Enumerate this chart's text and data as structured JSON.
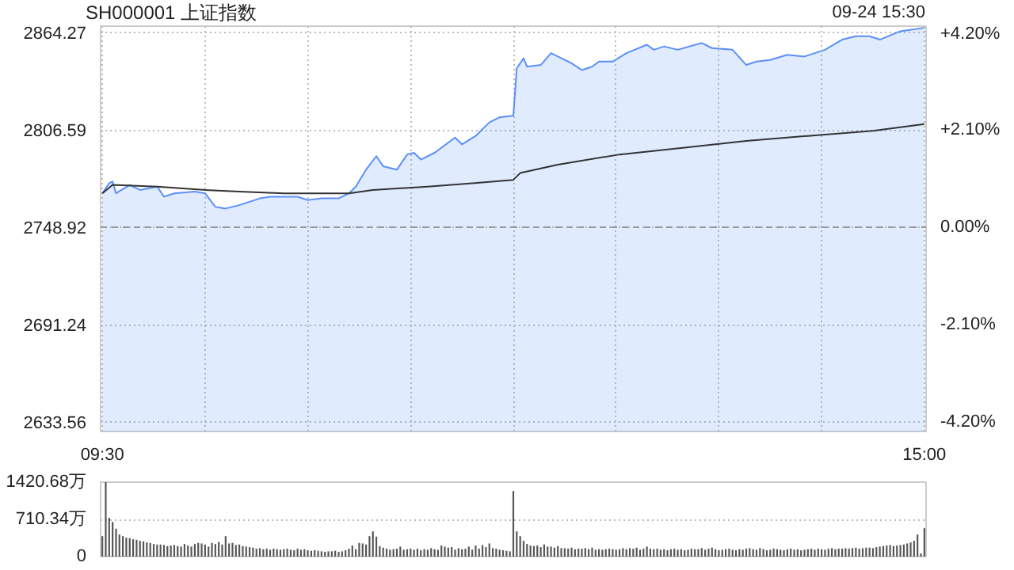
{
  "chart_data": [
    {
      "type": "area",
      "title": "SH000001 上证指数",
      "annotations": [
        "09-24 15:30"
      ],
      "categories": [
        "09:30",
        null,
        null,
        null,
        null,
        null,
        null,
        null,
        null,
        null,
        null,
        null,
        null,
        null,
        null,
        null,
        null,
        null,
        null,
        null,
        null,
        null,
        null,
        null,
        null,
        null,
        null,
        null,
        null,
        null,
        null,
        null,
        null,
        null,
        null,
        null,
        null,
        null,
        null,
        null,
        null,
        null,
        null,
        null,
        null,
        null,
        null,
        null,
        null,
        null,
        null,
        null,
        null,
        null,
        null,
        null,
        null,
        null,
        null,
        null,
        null,
        null,
        null,
        null,
        null,
        null,
        null,
        null,
        null,
        null,
        null,
        null,
        null,
        null,
        null,
        null,
        null,
        null,
        null,
        null,
        null,
        null,
        null,
        null,
        null,
        null,
        null,
        null,
        null,
        null,
        null,
        null,
        null,
        null,
        null,
        null,
        null,
        null,
        null,
        null,
        null,
        null,
        null,
        null,
        null,
        null,
        null,
        null,
        null,
        null,
        null,
        null,
        null,
        null,
        null,
        null,
        null,
        null,
        null,
        null,
        null,
        null,
        null,
        null,
        null,
        null,
        null,
        null,
        null,
        null,
        null,
        null,
        null,
        null,
        null,
        null,
        null,
        null,
        null,
        null,
        null,
        null,
        null,
        null,
        null,
        null,
        null,
        null,
        null,
        null,
        null,
        null,
        null,
        null,
        null,
        null,
        null,
        null,
        null,
        null,
        null,
        null,
        null,
        null,
        null,
        null,
        null,
        null,
        null,
        null,
        null,
        null,
        null,
        null,
        null,
        null,
        null,
        null,
        null,
        null,
        null,
        null,
        null,
        null,
        null,
        null,
        null,
        null,
        null,
        null,
        null,
        null,
        null,
        null,
        null,
        null,
        null,
        null,
        null,
        null,
        null,
        null,
        null,
        null,
        null,
        null,
        null,
        null,
        null,
        null,
        null,
        null,
        null,
        null,
        null,
        null,
        null,
        null,
        null,
        null,
        null,
        null,
        null,
        null,
        null,
        null,
        null,
        null,
        null,
        null,
        null,
        null,
        null,
        null,
        null,
        null,
        null,
        null,
        null,
        null,
        "15:00"
      ],
      "ylim": [
        2628,
        2868
      ],
      "yticks": [
        2633.56,
        2691.24,
        2748.92,
        2806.59,
        2864.27
      ],
      "y2lim": [
        -4.4,
        4.33
      ],
      "y2ticks": [
        {
          "value": -4.2,
          "label": "-4.20%"
        },
        {
          "value": -2.1,
          "label": "-2.10%"
        },
        {
          "value": 0,
          "label": "0.00%"
        },
        {
          "value": 2.1,
          "label": "+2.10%"
        },
        {
          "value": 4.2,
          "label": "+4.20%"
        }
      ],
      "grid": true,
      "ref_lines": [
        {
          "axis": "y",
          "value": 2748.92,
          "color": "#999999",
          "line_style": "dashed"
        }
      ],
      "series": [
        {
          "type": "area",
          "color": "#5b8ff9",
          "values": [
            2769,
            null,
            2775,
            2776,
            2769,
            null,
            null,
            null,
            2774,
            null,
            null,
            2771,
            null,
            null,
            null,
            null,
            2773,
            null,
            2767,
            null,
            null,
            2769,
            null,
            null,
            null,
            null,
            null,
            2770,
            null,
            null,
            2769,
            null,
            null,
            2761,
            null,
            null,
            2760,
            null,
            null,
            null,
            2762,
            null,
            null,
            2764,
            null,
            null,
            2766,
            null,
            null,
            2767,
            null,
            null,
            null,
            null,
            null,
            null,
            null,
            2767,
            null,
            null,
            2765,
            null,
            null,
            null,
            2766,
            null,
            null,
            null,
            null,
            2766,
            null,
            null,
            2769,
            null,
            2773,
            null,
            null,
            2783,
            null,
            null,
            2791,
            null,
            2785,
            null,
            2784,
            null,
            2783,
            null,
            null,
            2792,
            null,
            2793,
            null,
            2789,
            null,
            null,
            null,
            2793,
            null,
            null,
            null,
            null,
            null,
            2802,
            null,
            2798,
            null,
            null,
            null,
            2803,
            null,
            null,
            null,
            2811,
            null,
            null,
            2814,
            null,
            null,
            null,
            2815,
            2843,
            null,
            2849,
            2844,
            null,
            null,
            null,
            2845,
            null,
            null,
            2852,
            null,
            2850,
            null,
            null,
            null,
            2846,
            null,
            null,
            2842,
            null,
            null,
            2844,
            null,
            2847,
            null,
            null,
            null,
            2847,
            null,
            null,
            null,
            2852,
            null,
            null,
            null,
            null,
            null,
            2857,
            null,
            2854,
            null,
            null,
            2856,
            null,
            null,
            null,
            2854,
            null,
            null,
            null,
            null,
            null,
            null,
            2858,
            null,
            null,
            2855,
            null,
            null,
            null,
            null,
            null,
            2854,
            null,
            null,
            null,
            2845,
            null,
            null,
            2847,
            null,
            null,
            null,
            2848,
            null,
            null,
            null,
            null,
            2851,
            null,
            null,
            null,
            null,
            2850,
            null,
            null,
            null,
            null,
            null,
            2854,
            null,
            null,
            null,
            null,
            2860,
            null,
            null,
            null,
            2862,
            null,
            null,
            null,
            2862,
            null,
            null,
            2860,
            null,
            null,
            null,
            null,
            null,
            2865,
            null,
            null,
            null,
            null,
            null,
            null,
            2867
          ]
        },
        {
          "type": "line",
          "color": "#333333",
          "values": [
            2769,
            null,
            null,
            2774,
            null,
            null,
            null,
            null,
            null,
            null,
            null,
            null,
            null,
            null,
            null,
            null,
            2773,
            null,
            null,
            null,
            null,
            null,
            null,
            null,
            null,
            null,
            null,
            null,
            null,
            null,
            2771,
            null,
            null,
            null,
            null,
            null,
            null,
            null,
            null,
            null,
            2770,
            null,
            null,
            null,
            null,
            null,
            null,
            null,
            null,
            null,
            null,
            null,
            null,
            2769,
            null,
            null,
            null,
            null,
            null,
            null,
            null,
            null,
            null,
            null,
            null,
            null,
            null,
            null,
            null,
            null,
            null,
            null,
            2769,
            null,
            null,
            null,
            null,
            null,
            null,
            2771,
            null,
            null,
            null,
            null,
            null,
            null,
            null,
            null,
            null,
            null,
            null,
            null,
            null,
            null,
            null,
            2773,
            null,
            null,
            null,
            null,
            null,
            null,
            null,
            null,
            null,
            null,
            null,
            null,
            2775,
            null,
            null,
            null,
            null,
            null,
            null,
            null,
            null,
            null,
            null,
            null,
            2777,
            null,
            2781,
            null,
            null,
            null,
            null,
            null,
            null,
            null,
            null,
            null,
            null,
            2786,
            null,
            null,
            null,
            null,
            null,
            null,
            null,
            null,
            null,
            null,
            null,
            null,
            null,
            null,
            null,
            null,
            null,
            2792,
            null,
            null,
            null,
            null,
            null,
            null,
            null,
            null,
            null,
            null,
            null,
            null,
            null,
            null,
            null,
            null,
            null,
            null,
            2796,
            null,
            null,
            null,
            null,
            null,
            null,
            null,
            null,
            null,
            null,
            null,
            null,
            null,
            null,
            null,
            null,
            null,
            2800,
            null,
            null,
            null,
            null,
            null,
            null,
            null,
            null,
            null,
            null,
            null,
            null,
            null,
            null,
            null,
            null,
            null,
            2803,
            null,
            null,
            null,
            null,
            null,
            null,
            null,
            null,
            null,
            null,
            null,
            null,
            null,
            null,
            null,
            null,
            null,
            null,
            2806,
            null,
            null,
            null,
            null,
            null,
            null,
            null,
            null,
            null,
            null,
            null,
            null,
            null,
            null,
            2810
          ]
        }
      ]
    },
    {
      "type": "bar",
      "tick_labels": "y",
      "grid": "y",
      "ylim": [
        0,
        1420.68
      ],
      "yticks": [
        0,
        {
          "value": 710.34,
          "label": "710.34万"
        },
        {
          "value": 1420.68,
          "label": "1420.68万"
        }
      ],
      "color": "#555555",
      "categories": [
        null,
        null,
        null,
        null,
        null,
        null,
        null,
        null,
        null,
        null,
        null,
        null,
        null,
        null,
        null,
        null,
        null,
        null,
        null,
        null,
        null,
        null,
        null,
        null,
        null,
        null,
        null,
        null,
        null,
        null,
        null,
        null,
        null,
        null,
        null,
        null,
        null,
        null,
        null,
        null,
        null,
        null,
        null,
        null,
        null,
        null,
        null,
        null,
        null,
        null,
        null,
        null,
        null,
        null,
        null,
        null,
        null,
        null,
        null,
        null,
        null,
        null,
        null,
        null,
        null,
        null,
        null,
        null,
        null,
        null,
        null,
        null,
        null,
        null,
        null,
        null,
        null,
        null,
        null,
        null,
        null,
        null,
        null,
        null,
        null,
        null,
        null,
        null,
        null,
        null,
        null,
        null,
        null,
        null,
        null,
        null,
        null,
        null,
        null,
        null,
        null,
        null,
        null,
        null,
        null,
        null,
        null,
        null,
        null,
        null,
        null,
        null,
        null,
        null,
        null,
        null,
        null,
        null,
        null,
        null,
        null,
        null,
        null,
        null,
        null,
        null,
        null,
        null,
        null,
        null,
        null,
        null,
        null,
        null,
        null,
        null,
        null,
        null,
        null,
        null,
        null,
        null,
        null,
        null,
        null,
        null,
        null,
        null,
        null,
        null,
        null,
        null,
        null,
        null,
        null,
        null,
        null,
        null,
        null,
        null,
        null,
        null,
        null,
        null,
        null,
        null,
        null,
        null,
        null,
        null,
        null,
        null,
        null,
        null,
        null,
        null,
        null,
        null,
        null,
        null,
        null,
        null,
        null,
        null,
        null,
        null,
        null,
        null,
        null,
        null,
        null,
        null,
        null,
        null,
        null,
        null,
        null,
        null,
        null,
        null,
        null,
        null,
        null,
        null,
        null,
        null,
        null,
        null,
        null,
        null,
        null,
        null,
        null,
        null,
        null,
        null,
        null,
        null,
        null,
        null,
        null,
        null,
        null,
        null,
        null,
        null,
        null,
        null,
        null,
        null,
        null,
        null,
        null,
        null,
        null,
        null,
        null,
        null,
        null,
        null,
        null
      ],
      "values": [
        390,
        1420,
        740,
        660,
        530,
        420,
        390,
        360,
        350,
        330,
        320,
        300,
        290,
        270,
        260,
        240,
        230,
        230,
        220,
        200,
        210,
        220,
        200,
        190,
        240,
        210,
        190,
        240,
        260,
        250,
        230,
        190,
        260,
        240,
        280,
        230,
        390,
        250,
        260,
        220,
        230,
        200,
        190,
        180,
        170,
        150,
        160,
        140,
        150,
        130,
        150,
        140,
        130,
        140,
        150,
        130,
        120,
        150,
        130,
        140,
        120,
        110,
        120,
        110,
        100,
        90,
        100,
        100,
        110,
        90,
        100,
        120,
        150,
        210,
        140,
        260,
        250,
        230,
        390,
        480,
        380,
        200,
        170,
        150,
        130,
        140,
        150,
        190,
        130,
        140,
        150,
        130,
        150,
        120,
        140,
        130,
        160,
        140,
        130,
        210,
        190,
        170,
        180,
        130,
        160,
        140,
        150,
        190,
        130,
        210,
        150,
        220,
        180,
        250,
        160,
        150,
        130,
        120,
        110,
        100,
        1250,
        480,
        390,
        300,
        240,
        210,
        200,
        210,
        180,
        230,
        190,
        190,
        170,
        200,
        160,
        160,
        150,
        170,
        140,
        150,
        150,
        160,
        140,
        170,
        130,
        140,
        130,
        140,
        150,
        140,
        130,
        140,
        160,
        140,
        160,
        150,
        170,
        130,
        150,
        190,
        150,
        140,
        150,
        130,
        140,
        120,
        140,
        150,
        130,
        140,
        120,
        130,
        150,
        140,
        140,
        160,
        130,
        150,
        170,
        140,
        120,
        130,
        140,
        150,
        130,
        120,
        140,
        130,
        150,
        160,
        140,
        130,
        160,
        140,
        120,
        130,
        150,
        140,
        130,
        120,
        140,
        150,
        130,
        140,
        120,
        130,
        140,
        150,
        130,
        150,
        140,
        130,
        150,
        160,
        140,
        150,
        150,
        160,
        150,
        160,
        170,
        150,
        160,
        170,
        170,
        160,
        180,
        190,
        200,
        210,
        220,
        200,
        210,
        220,
        230,
        250,
        270,
        300,
        420,
        60,
        540
      ]
    }
  ]
}
